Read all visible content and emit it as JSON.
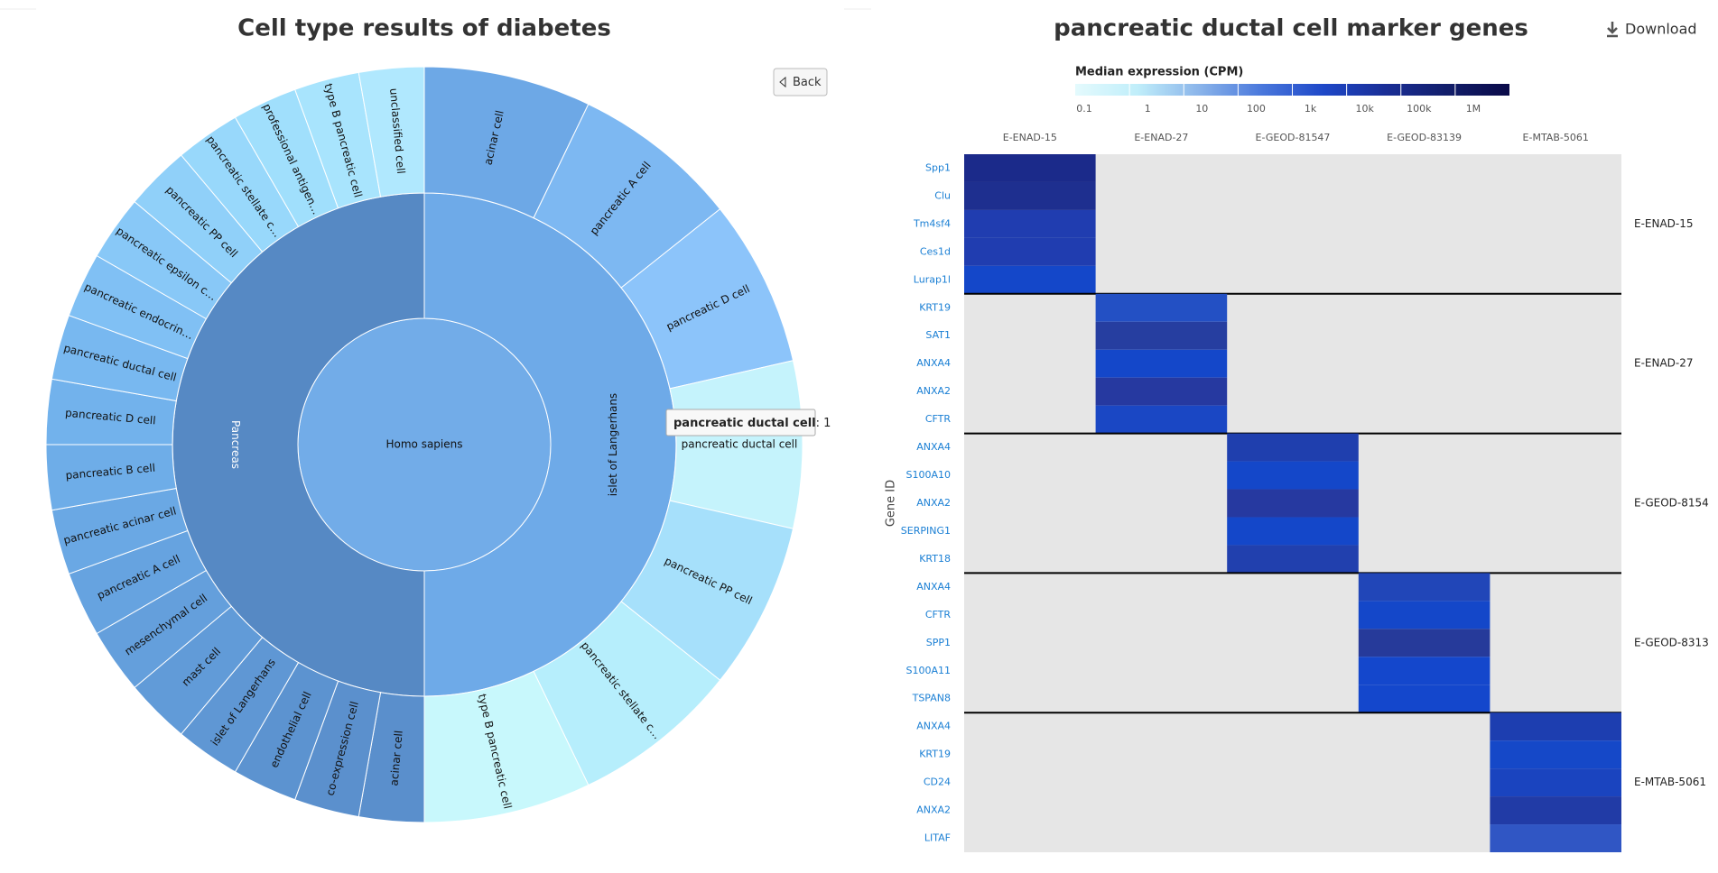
{
  "left": {
    "title": "Cell type results of diabetes",
    "back_button": "Back",
    "sunburst": {
      "root": {
        "label": "Homo sapiens",
        "color": "#72ace8"
      },
      "children": [
        {
          "label": "islet of Langerhans",
          "color": "#6eaae8",
          "children": [
            {
              "label": "acinar cell",
              "color": "#6da8e6"
            },
            {
              "label": "pancreatic A cell",
              "color": "#7db8f2"
            },
            {
              "label": "pancreatic D cell",
              "color": "#8cc4fa"
            },
            {
              "label": "pancreatic ductal cell",
              "color": "#c5f3fc"
            },
            {
              "label": "pancreatic PP cell",
              "color": "#a6e0fb"
            },
            {
              "label": "pancreatic stellate c…",
              "color": "#b6eefc"
            },
            {
              "label": "type B pancreatic cell",
              "color": "#c8f8fc"
            }
          ]
        },
        {
          "label": "Pancreas",
          "color": "#5689c4",
          "children": [
            {
              "label": "acinar cell",
              "color": "#5a8fcc"
            },
            {
              "label": "co-expression cell",
              "color": "#5b90cd"
            },
            {
              "label": "endothelial cell",
              "color": "#5c93d0"
            },
            {
              "label": "islet of Langerhans",
              "color": "#5f97d4"
            },
            {
              "label": "mast cell",
              "color": "#619bd8"
            },
            {
              "label": "mesenchymal cell",
              "color": "#649fdc"
            },
            {
              "label": "pancreatic A cell",
              "color": "#66a3e0"
            },
            {
              "label": "pancreatic acinar cell",
              "color": "#6aa8e4"
            },
            {
              "label": "pancreatic B cell",
              "color": "#6eade8"
            },
            {
              "label": "pancreatic D cell",
              "color": "#72b2ec"
            },
            {
              "label": "pancreatic ductal cell",
              "color": "#78b8f0"
            },
            {
              "label": "pancreatic endocrin…",
              "color": "#80c0f4"
            },
            {
              "label": "pancreatic epsilon c…",
              "color": "#88c8f7"
            },
            {
              "label": "pancreatic PP cell",
              "color": "#90d0f9"
            },
            {
              "label": "pancreatic stellate c…",
              "color": "#98d8fb"
            },
            {
              "label": "professional antigen…",
              "color": "#a0dffc"
            },
            {
              "label": "type B pancreatic cell",
              "color": "#a8e4fd"
            },
            {
              "label": "unclassified cell",
              "color": "#b0e8fe"
            }
          ]
        }
      ]
    },
    "tooltip": {
      "label": "pancreatic ductal cell",
      "value": 1
    }
  },
  "right": {
    "title": "pancreatic ductal cell marker genes",
    "download": "Download",
    "legend": {
      "title": "Median expression (CPM)",
      "ticks": [
        "0.1",
        "1",
        "10",
        "100",
        "1k",
        "10k",
        "100k",
        "1M"
      ],
      "colors": [
        "#e4fafd",
        "#c0eefa",
        "#8ab4ea",
        "#4a78dc",
        "#1e48c8",
        "#1a2e96",
        "#121e6a",
        "#0a0a48"
      ]
    },
    "y_axis_label": "Gene ID",
    "columns": [
      "E-ENAD-15",
      "E-ENAD-27",
      "E-GEOD-81547",
      "E-GEOD-83139",
      "E-MTAB-5061"
    ],
    "empty_color": "#e6e6e6",
    "groups": [
      {
        "label": "E-ENAD-15",
        "genes": [
          {
            "name": "Spp1",
            "color": "#1b2a8a"
          },
          {
            "name": "Clu",
            "color": "#1e2f8f"
          },
          {
            "name": "Tm4sf4",
            "color": "#203db0"
          },
          {
            "name": "Ces1d",
            "color": "#203db0"
          },
          {
            "name": "Lurap1l",
            "color": "#1447c9"
          }
        ]
      },
      {
        "label": "E-ENAD-27",
        "genes": [
          {
            "name": "KRT19",
            "color": "#2350c4"
          },
          {
            "name": "SAT1",
            "color": "#263ea0"
          },
          {
            "name": "ANXA4",
            "color": "#1447c9"
          },
          {
            "name": "ANXA2",
            "color": "#2639a0"
          },
          {
            "name": "CFTR",
            "color": "#1a47c4"
          }
        ]
      },
      {
        "label": "E-GEOD-8154",
        "genes": [
          {
            "name": "ANXA4",
            "color": "#1f3fae"
          },
          {
            "name": "S100A10",
            "color": "#1447c9"
          },
          {
            "name": "ANXA2",
            "color": "#2639a0"
          },
          {
            "name": "SERPING1",
            "color": "#1447c9"
          },
          {
            "name": "KRT18",
            "color": "#2140ae"
          }
        ]
      },
      {
        "label": "E-GEOD-8313",
        "genes": [
          {
            "name": "ANXA4",
            "color": "#2146b8"
          },
          {
            "name": "CFTR",
            "color": "#1447c9"
          },
          {
            "name": "SPP1",
            "color": "#263a9a"
          },
          {
            "name": "S100A11",
            "color": "#1447cc"
          },
          {
            "name": "TSPAN8",
            "color": "#1447cc"
          }
        ]
      },
      {
        "label": "E-MTAB-5061",
        "genes": [
          {
            "name": "ANXA4",
            "color": "#1d3eb0"
          },
          {
            "name": "KRT19",
            "color": "#1548c8"
          },
          {
            "name": "CD24",
            "color": "#1a44bf"
          },
          {
            "name": "ANXA2",
            "color": "#213ba6"
          },
          {
            "name": "LITAF",
            "color": "#3056c4"
          }
        ]
      }
    ]
  }
}
